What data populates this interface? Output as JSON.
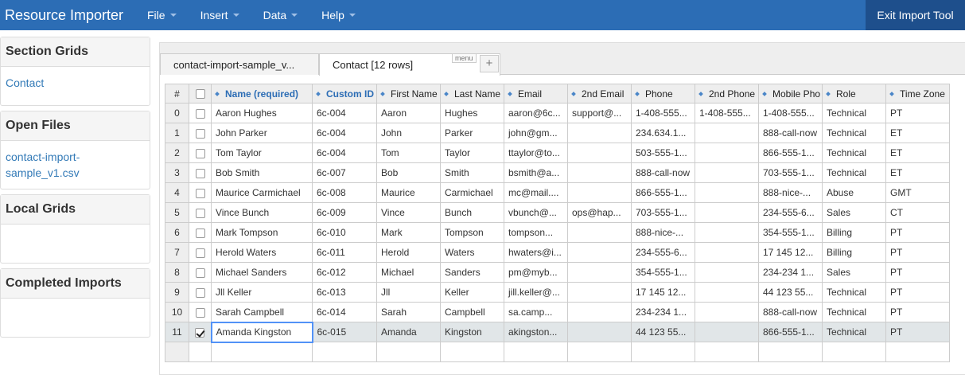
{
  "navbar": {
    "brand": "Resource Importer",
    "menus": [
      "File",
      "Insert",
      "Data",
      "Help"
    ],
    "exit": "Exit Import Tool"
  },
  "sidebar": [
    {
      "title": "Section Grids",
      "items": [
        "Contact"
      ]
    },
    {
      "title": "Open Files",
      "items": [
        "contact-import-sample_v1.csv"
      ]
    },
    {
      "title": "Local Grids"
    },
    {
      "title": "Completed Imports"
    }
  ],
  "tabs": {
    "items": [
      "contact-import-sample_v...",
      "Contact [12 rows]"
    ],
    "active": 1,
    "menu": "menu",
    "add": "+"
  },
  "grid": {
    "index_header": "#",
    "columns": [
      "Name (required)",
      "Custom ID",
      "First Name",
      "Last Name",
      "Email",
      "2nd Email",
      "Phone",
      "2nd Phone",
      "Mobile Pho",
      "Role",
      "Time Zone"
    ],
    "required_columns": [
      0,
      1
    ],
    "selected_row": 11,
    "rows": [
      {
        "index": 0,
        "checked": false,
        "cells": [
          "Aaron Hughes",
          "6c-004",
          "Aaron",
          "Hughes",
          "aaron@6c...",
          "support@...",
          "1-408-555...",
          "1-408-555...",
          "1-408-555...",
          "Technical",
          "PT"
        ]
      },
      {
        "index": 1,
        "checked": false,
        "cells": [
          "John Parker",
          "6c-004",
          "John",
          "Parker",
          "john@gm...",
          null,
          "234.634.1...",
          null,
          "888-call-now",
          "Technical",
          "ET"
        ]
      },
      {
        "index": 2,
        "checked": false,
        "cells": [
          "Tom Taylor",
          "6c-004",
          "Tom",
          "Taylor",
          "ttaylor@to...",
          null,
          "503-555-1...",
          null,
          "866-555-1...",
          "Technical",
          "ET"
        ]
      },
      {
        "index": 3,
        "checked": false,
        "cells": [
          "Bob Smith",
          "6c-007",
          "Bob",
          "Smith",
          "bsmith@a...",
          null,
          "888-call-now",
          null,
          "703-555-1...",
          "Technical",
          "ET"
        ]
      },
      {
        "index": 4,
        "checked": false,
        "cells": [
          "Maurice Carmichael",
          "6c-008",
          "Maurice",
          "Carmichael",
          "mc@mail....",
          null,
          "866-555-1...",
          null,
          "888-nice-...",
          "Abuse",
          "GMT"
        ]
      },
      {
        "index": 5,
        "checked": false,
        "cells": [
          "Vince Bunch",
          "6c-009",
          "Vince",
          "Bunch",
          "vbunch@...",
          "ops@hap...",
          "703-555-1...",
          null,
          "234-555-6...",
          "Sales",
          "CT"
        ]
      },
      {
        "index": 6,
        "checked": false,
        "cells": [
          "Mark Tompson",
          "6c-010",
          "Mark",
          "Tompson",
          "tompson...",
          null,
          "888-nice-...",
          null,
          "354-555-1...",
          "Billing",
          "PT"
        ]
      },
      {
        "index": 7,
        "checked": false,
        "cells": [
          "Herold Waters",
          "6c-011",
          "Herold",
          "Waters",
          "hwaters@i...",
          null,
          "234-555-6...",
          null,
          "17 145 12...",
          "Billing",
          "PT"
        ]
      },
      {
        "index": 8,
        "checked": false,
        "cells": [
          "Michael Sanders",
          "6c-012",
          "Michael",
          "Sanders",
          "pm@myb...",
          null,
          "354-555-1...",
          null,
          "234-234 1...",
          "Sales",
          "PT"
        ]
      },
      {
        "index": 9,
        "checked": false,
        "cells": [
          "Jll Keller",
          "6c-013",
          "Jll",
          "Keller",
          "jill.keller@...",
          null,
          "17 145 12...",
          null,
          "44 123 55...",
          "Technical",
          "PT"
        ]
      },
      {
        "index": 10,
        "checked": false,
        "cells": [
          "Sarah Campbell",
          "6c-014",
          "Sarah",
          "Campbell",
          "sa.camp...",
          null,
          "234-234 1...",
          null,
          "888-call-now",
          "Technical",
          "PT"
        ]
      },
      {
        "index": 11,
        "checked": true,
        "cells": [
          "Amanda Kingston",
          "6c-015",
          "Amanda",
          "Kingston",
          "akingston...",
          null,
          "44 123 55...",
          null,
          "866-555-1...",
          "Technical",
          "PT"
        ]
      }
    ]
  }
}
